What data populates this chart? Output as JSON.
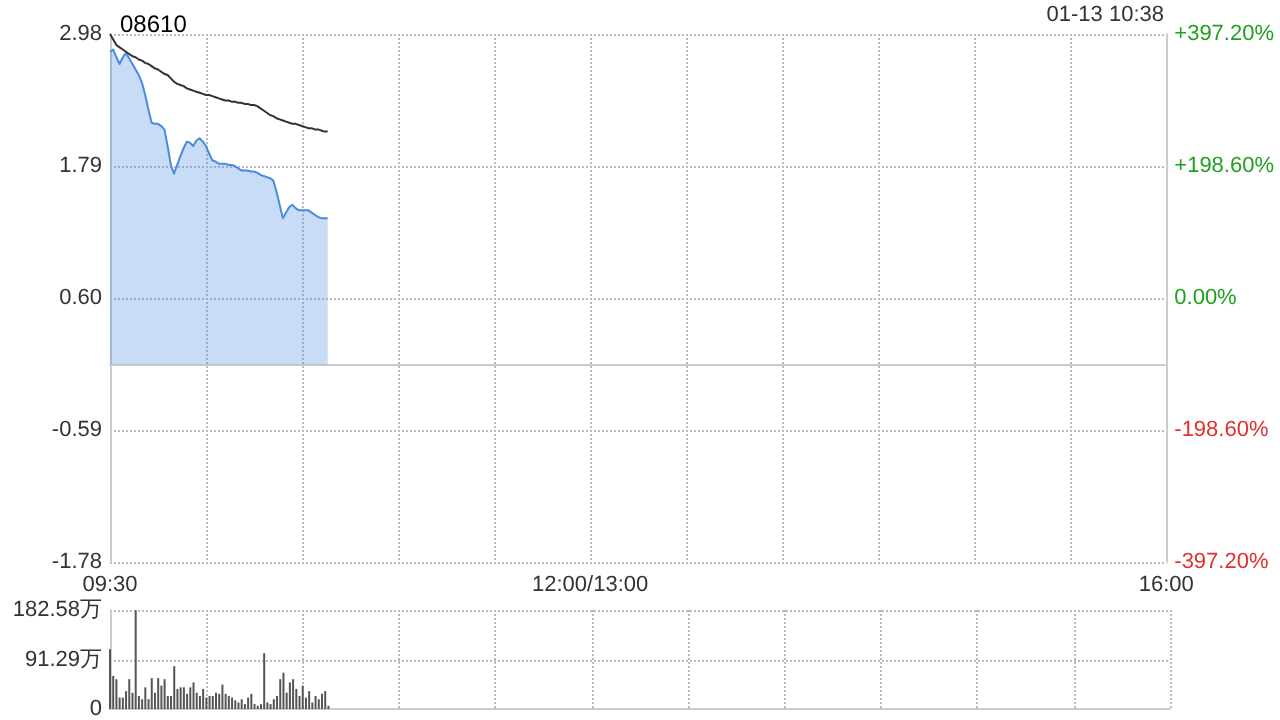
{
  "chart_data": [
    {
      "type": "line",
      "title": "08610",
      "annotations": [
        "01-13 10:38"
      ],
      "grid": true,
      "marker": "none",
      "line_style": "solid",
      "categories": [
        "09:30",
        null,
        null,
        null,
        null,
        null,
        null,
        null,
        null,
        null,
        null,
        null,
        null,
        null,
        null,
        null,
        null,
        null,
        null,
        null,
        null,
        null,
        null,
        null,
        null,
        null,
        null,
        null,
        null,
        null,
        null,
        null,
        null,
        null,
        null,
        null,
        null,
        null,
        null,
        null,
        null,
        null,
        null,
        null,
        null,
        null,
        null,
        null,
        null,
        null,
        null,
        null,
        null,
        null,
        null,
        null,
        null,
        null,
        null,
        null,
        null,
        null,
        null,
        null,
        null,
        null,
        null,
        null,
        null,
        null,
        null,
        null,
        null,
        null,
        null,
        null,
        null,
        null,
        null,
        null,
        null,
        null,
        null,
        null,
        null,
        null,
        null,
        null,
        null,
        null,
        null,
        null,
        null,
        null,
        null,
        null,
        null,
        null,
        null,
        null,
        null,
        null,
        null,
        null,
        null,
        null,
        null,
        null,
        null,
        null,
        null,
        null,
        null,
        null,
        null,
        null,
        null,
        null,
        null,
        null,
        null,
        null,
        null,
        null,
        null,
        null,
        null,
        null,
        null,
        null,
        null,
        null,
        null,
        null,
        null,
        null,
        null,
        null,
        null,
        null,
        null,
        null,
        null,
        null,
        null,
        null,
        null,
        null,
        null,
        null,
        "12:00/13:00",
        null,
        null,
        null,
        null,
        null,
        null,
        null,
        null,
        null,
        null,
        null,
        null,
        null,
        null,
        null,
        null,
        null,
        null,
        null,
        null,
        null,
        null,
        null,
        null,
        null,
        null,
        null,
        null,
        null,
        null,
        null,
        null,
        null,
        null,
        null,
        null,
        null,
        null,
        null,
        null,
        null,
        null,
        null,
        null,
        null,
        null,
        null,
        null,
        null,
        null,
        null,
        null,
        null,
        null,
        null,
        null,
        null,
        null,
        null,
        null,
        null,
        null,
        null,
        null,
        null,
        null,
        null,
        null,
        null,
        null,
        null,
        null,
        null,
        null,
        null,
        null,
        null,
        null,
        null,
        null,
        null,
        null,
        null,
        null,
        null,
        null,
        null,
        null,
        null,
        null,
        null,
        null,
        null,
        null,
        null,
        null,
        null,
        null,
        null,
        null,
        null,
        null,
        null,
        null,
        null,
        null,
        null,
        null,
        null,
        null,
        null,
        null,
        null,
        null,
        null,
        null,
        null,
        null,
        null,
        null,
        null,
        null,
        null,
        null,
        null,
        null,
        null,
        null,
        null,
        null,
        null,
        null,
        null,
        null,
        null,
        null,
        null,
        null,
        null,
        null,
        null,
        null,
        null,
        null,
        null,
        null,
        null,
        null,
        null,
        null,
        null,
        null,
        null,
        null,
        null,
        null,
        null,
        null,
        null,
        null,
        null,
        null,
        null,
        null,
        null,
        null,
        null,
        null,
        null,
        null,
        null,
        null,
        null,
        null,
        null,
        null,
        null,
        null,
        null,
        "16:00"
      ],
      "ylim": [
        -1.78,
        2.98
      ],
      "yticks": [
        2.98,
        1.79,
        {
          "value": 0.6,
          "label": "0.60"
        },
        -0.59,
        -1.78
      ],
      "y2lim": [
        -397.2,
        397.2
      ],
      "y2ticks": [
        {
          "value": 397.2,
          "label": "+397.20%"
        },
        {
          "value": 198.6,
          "label": "+198.60%"
        },
        {
          "value": 0,
          "label": "0.00%"
        },
        {
          "value": -198.6,
          "label": "-198.60%"
        },
        {
          "value": -397.2,
          "label": "-397.20%"
        }
      ],
      "series": [
        {
          "type": "area",
          "color": "#4a8ae0",
          "values": [
            2.82,
            2.84,
            2.77,
            2.71,
            2.77,
            2.81,
            2.76,
            2.71,
            2.66,
            2.61,
            2.54,
            2.43,
            2.3,
            2.18,
            2.17,
            2.17,
            2.15,
            2.12,
            1.97,
            1.8,
            1.72,
            1.8,
            1.88,
            1.95,
            2.01,
            2.0,
            1.97,
            2.02,
            2.04,
            2.01,
            1.97,
            1.9,
            1.84,
            1.83,
            1.81,
            1.81,
            1.81,
            1.8,
            1.8,
            1.79,
            1.77,
            1.75,
            1.75,
            1.75,
            1.74,
            1.74,
            1.73,
            1.71,
            1.7,
            1.69,
            1.68,
            1.66,
            1.56,
            1.44,
            1.32,
            1.37,
            1.42,
            1.44,
            1.41,
            1.39,
            1.39,
            1.39,
            1.39,
            1.37,
            1.35,
            1.33,
            1.32,
            1.32,
            1.32,
            null,
            null,
            null,
            null,
            null,
            null,
            null,
            null,
            null,
            null,
            null,
            null,
            null,
            null,
            null,
            null,
            null,
            null,
            null,
            null,
            null,
            null,
            null,
            null,
            null,
            null,
            null,
            null,
            null,
            null,
            null,
            null,
            null,
            null,
            null,
            null,
            null,
            null,
            null,
            null,
            null,
            null,
            null,
            null,
            null,
            null,
            null,
            null,
            null,
            null,
            null,
            null,
            null,
            null,
            null,
            null,
            null,
            null,
            null,
            null,
            null,
            null,
            null,
            null,
            null,
            null,
            null,
            null,
            null,
            null,
            null,
            null,
            null,
            null,
            null,
            null,
            null,
            null,
            null,
            null,
            null,
            null,
            null,
            null,
            null,
            null,
            null,
            null,
            null,
            null,
            null,
            null,
            null,
            null,
            null,
            null,
            null,
            null,
            null,
            null,
            null,
            null,
            null,
            null,
            null,
            null,
            null,
            null,
            null,
            null,
            null,
            null,
            null,
            null,
            null,
            null,
            null,
            null,
            null,
            null,
            null,
            null,
            null,
            null,
            null,
            null,
            null,
            null,
            null,
            null,
            null,
            null,
            null,
            null,
            null,
            null,
            null,
            null,
            null,
            null,
            null,
            null,
            null,
            null,
            null,
            null,
            null,
            null,
            null,
            null,
            null,
            null,
            null,
            null,
            null,
            null,
            null,
            null,
            null,
            null,
            null,
            null,
            null,
            null,
            null,
            null,
            null,
            null,
            null,
            null,
            null,
            null,
            null,
            null,
            null,
            null,
            null,
            null,
            null,
            null,
            null,
            null,
            null,
            null,
            null,
            null,
            null,
            null,
            null,
            null,
            null,
            null,
            null,
            null,
            null,
            null,
            null,
            null,
            null,
            null,
            null,
            null,
            null,
            null,
            null,
            null,
            null,
            null,
            null,
            null,
            null,
            null,
            null,
            null,
            null,
            null,
            null,
            null,
            null,
            null,
            null,
            null,
            null,
            null,
            null,
            null,
            null,
            null,
            null,
            null,
            null,
            null,
            null,
            null,
            null,
            null,
            null,
            null,
            null,
            null,
            null,
            null,
            null,
            null,
            null,
            null,
            null,
            null,
            null,
            null,
            null,
            null,
            null,
            null,
            null,
            null,
            null,
            null,
            null,
            null,
            null,
            null
          ]
        },
        {
          "type": "line",
          "color": "#333333",
          "values": [
            2.98,
            2.93,
            2.88,
            2.86,
            2.84,
            2.82,
            2.8,
            2.78,
            2.77,
            2.75,
            2.74,
            2.72,
            2.71,
            2.69,
            2.67,
            2.66,
            2.64,
            2.62,
            2.61,
            2.58,
            2.55,
            2.53,
            2.52,
            2.51,
            2.49,
            2.48,
            2.47,
            2.46,
            2.45,
            2.44,
            2.43,
            2.43,
            2.42,
            2.41,
            2.4,
            2.39,
            2.38,
            2.38,
            2.37,
            2.37,
            2.36,
            2.36,
            2.35,
            2.35,
            2.34,
            2.34,
            2.33,
            2.31,
            2.29,
            2.27,
            2.25,
            2.24,
            2.22,
            2.21,
            2.2,
            2.19,
            2.18,
            2.17,
            2.17,
            2.16,
            2.15,
            2.14,
            2.13,
            2.13,
            2.12,
            2.12,
            2.11,
            2.1,
            2.1,
            null,
            null,
            null,
            null,
            null,
            null,
            null,
            null,
            null,
            null,
            null,
            null,
            null,
            null,
            null,
            null,
            null,
            null,
            null,
            null,
            null,
            null,
            null,
            null,
            null,
            null,
            null,
            null,
            null,
            null,
            null,
            null,
            null,
            null,
            null,
            null,
            null,
            null,
            null,
            null,
            null,
            null,
            null,
            null,
            null,
            null,
            null,
            null,
            null,
            null,
            null,
            null,
            null,
            null,
            null,
            null,
            null,
            null,
            null,
            null,
            null,
            null,
            null,
            null,
            null,
            null,
            null,
            null,
            null,
            null,
            null,
            null,
            null,
            null,
            null,
            null,
            null,
            null,
            null,
            null,
            null,
            null,
            null,
            null,
            null,
            null,
            null,
            null,
            null,
            null,
            null,
            null,
            null,
            null,
            null,
            null,
            null,
            null,
            null,
            null,
            null,
            null,
            null,
            null,
            null,
            null,
            null,
            null,
            null,
            null,
            null,
            null,
            null,
            null,
            null,
            null,
            null,
            null,
            null,
            null,
            null,
            null,
            null,
            null,
            null,
            null,
            null,
            null,
            null,
            null,
            null,
            null,
            null,
            null,
            null,
            null,
            null,
            null,
            null,
            null,
            null,
            null,
            null,
            null,
            null,
            null,
            null,
            null,
            null,
            null,
            null,
            null,
            null,
            null,
            null,
            null,
            null,
            null,
            null,
            null,
            null,
            null,
            null,
            null,
            null,
            null,
            null,
            null,
            null,
            null,
            null,
            null,
            null,
            null,
            null,
            null,
            null,
            null,
            null,
            null,
            null,
            null,
            null,
            null,
            null,
            null,
            null,
            null,
            null,
            null,
            null,
            null,
            null,
            null,
            null,
            null,
            null,
            null,
            null,
            null,
            null,
            null,
            null,
            null,
            null,
            null,
            null,
            null,
            null,
            null,
            null,
            null,
            null,
            null,
            null,
            null,
            null,
            null,
            null,
            null,
            null,
            null,
            null,
            null,
            null,
            null,
            null,
            null,
            null,
            null,
            null,
            null,
            null,
            null,
            null,
            null,
            null,
            null,
            null,
            null,
            null,
            null,
            null,
            null,
            null,
            null,
            null,
            null,
            null,
            null,
            null,
            null,
            null,
            null,
            null,
            null,
            null,
            null,
            null,
            null,
            null,
            null
          ]
        }
      ]
    },
    {
      "type": "bar",
      "color": "#555555",
      "grid": true,
      "tick_labels": "y",
      "categories": [
        null,
        null,
        null,
        null,
        null,
        null,
        null,
        null,
        null,
        null,
        null,
        null,
        null,
        null,
        null,
        null,
        null,
        null,
        null,
        null,
        null,
        null,
        null,
        null,
        null,
        null,
        null,
        null,
        null,
        null,
        null,
        null,
        null,
        null,
        null,
        null,
        null,
        null,
        null,
        null,
        null,
        null,
        null,
        null,
        null,
        null,
        null,
        null,
        null,
        null,
        null,
        null,
        null,
        null,
        null,
        null,
        null,
        null,
        null,
        null,
        null,
        null,
        null,
        null,
        null,
        null,
        null,
        null,
        null,
        null,
        null,
        null,
        null,
        null,
        null,
        null,
        null,
        null,
        null,
        null,
        null,
        null,
        null,
        null,
        null,
        null,
        null,
        null,
        null,
        null,
        null,
        null,
        null,
        null,
        null,
        null,
        null,
        null,
        null,
        null,
        null,
        null,
        null,
        null,
        null,
        null,
        null,
        null,
        null,
        null,
        null,
        null,
        null,
        null,
        null,
        null,
        null,
        null,
        null,
        null,
        null,
        null,
        null,
        null,
        null,
        null,
        null,
        null,
        null,
        null,
        null,
        null,
        null,
        null,
        null,
        null,
        null,
        null,
        null,
        null,
        null,
        null,
        null,
        null,
        null,
        null,
        null,
        null,
        null,
        null,
        null,
        null,
        null,
        null,
        null,
        null,
        null,
        null,
        null,
        null,
        null,
        null,
        null,
        null,
        null,
        null,
        null,
        null,
        null,
        null,
        null,
        null,
        null,
        null,
        null,
        null,
        null,
        null,
        null,
        null,
        null,
        null,
        null,
        null,
        null,
        null,
        null,
        null,
        null,
        null,
        null,
        null,
        null,
        null,
        null,
        null,
        null,
        null,
        null,
        null,
        null,
        null,
        null,
        null,
        null,
        null,
        null,
        null,
        null,
        null,
        null,
        null,
        null,
        null,
        null,
        null,
        null,
        null,
        null,
        null,
        null,
        null,
        null,
        null,
        null,
        null,
        null,
        null,
        null,
        null,
        null,
        null,
        null,
        null,
        null,
        null,
        null,
        null,
        null,
        null,
        null,
        null,
        null,
        null,
        null,
        null,
        null,
        null,
        null,
        null,
        null,
        null,
        null,
        null,
        null,
        null,
        null,
        null,
        null,
        null,
        null,
        null,
        null,
        null,
        null,
        null,
        null,
        null,
        null,
        null,
        null,
        null,
        null,
        null,
        null,
        null,
        null,
        null,
        null,
        null,
        null,
        null,
        null,
        null,
        null,
        null,
        null,
        null,
        null,
        null,
        null,
        null,
        null,
        null,
        null,
        null,
        null,
        null,
        null,
        null,
        null,
        null,
        null,
        null,
        null,
        null,
        null,
        null,
        null,
        null,
        null,
        null,
        null,
        null,
        null,
        null,
        null,
        null,
        null,
        null,
        null,
        null,
        null,
        null,
        null,
        null,
        null,
        null,
        null,
        null,
        null
      ],
      "ylim": [
        0,
        182.58
      ],
      "yticks": [
        0,
        {
          "value": 91.29,
          "label": "91.29万"
        },
        {
          "value": 182.58,
          "label": "182.58万"
        }
      ],
      "values": [
        110,
        61,
        55,
        21,
        21,
        33,
        55,
        30,
        182,
        24,
        18,
        40,
        18,
        57,
        30,
        57,
        43,
        55,
        24,
        24,
        79,
        37,
        40,
        40,
        28,
        40,
        49,
        30,
        24,
        37,
        21,
        24,
        24,
        30,
        28,
        45,
        28,
        24,
        21,
        16,
        12,
        18,
        9,
        21,
        28,
        9,
        6,
        9,
        103,
        12,
        9,
        18,
        24,
        55,
        67,
        30,
        49,
        55,
        37,
        24,
        43,
        21,
        33,
        12,
        24,
        18,
        28,
        33,
        6,
        null,
        null,
        null,
        null,
        null,
        null,
        null,
        null,
        null,
        null,
        null,
        null,
        null,
        null,
        null,
        null,
        null,
        null,
        null,
        null,
        null,
        null,
        null,
        null,
        null,
        null,
        null,
        null,
        null,
        null,
        null,
        null,
        null,
        null,
        null,
        null,
        null,
        null,
        null,
        null,
        null,
        null,
        null,
        null,
        null,
        null,
        null,
        null,
        null,
        null,
        null,
        null,
        null,
        null,
        null,
        null,
        null,
        null,
        null,
        null,
        null,
        null,
        null,
        null,
        null,
        null,
        null,
        null,
        null,
        null,
        null,
        null,
        null,
        null,
        null,
        null,
        null,
        null,
        null,
        null,
        null,
        null,
        null,
        null,
        null,
        null,
        null,
        null,
        null,
        null,
        null,
        null,
        null,
        null,
        null,
        null,
        null,
        null,
        null,
        null,
        null,
        null,
        null,
        null,
        null,
        null,
        null,
        null,
        null,
        null,
        null,
        null,
        null,
        null,
        null,
        null,
        null,
        null,
        null,
        null,
        null,
        null,
        null,
        null,
        null,
        null,
        null,
        null,
        null,
        null,
        null,
        null,
        null,
        null,
        null,
        null,
        null,
        null,
        null,
        null,
        null,
        null,
        null,
        null,
        null,
        null,
        null,
        null,
        null,
        null,
        null,
        null,
        null,
        null,
        null,
        null,
        null,
        null,
        null,
        null,
        null,
        null,
        null,
        null,
        null,
        null,
        null,
        null,
        null,
        null,
        null,
        null,
        null,
        null,
        null,
        null,
        null,
        null,
        null,
        null,
        null,
        null,
        null,
        null,
        null,
        null,
        null,
        null,
        null,
        null,
        null,
        null,
        null,
        null,
        null,
        null,
        null,
        null,
        null,
        null,
        null,
        null,
        null,
        null,
        null,
        null,
        null,
        null,
        null,
        null,
        null,
        null,
        null,
        null,
        null,
        null,
        null,
        null,
        null,
        null,
        null,
        null,
        null,
        null,
        null,
        null,
        null,
        null,
        null,
        null,
        null,
        null,
        null,
        null,
        null,
        null,
        null,
        null,
        null,
        null,
        null,
        null,
        null,
        null,
        null,
        null,
        null,
        null,
        null,
        null,
        null,
        null,
        null,
        null,
        null,
        null,
        null,
        null,
        null,
        null,
        null,
        null
      ]
    }
  ]
}
